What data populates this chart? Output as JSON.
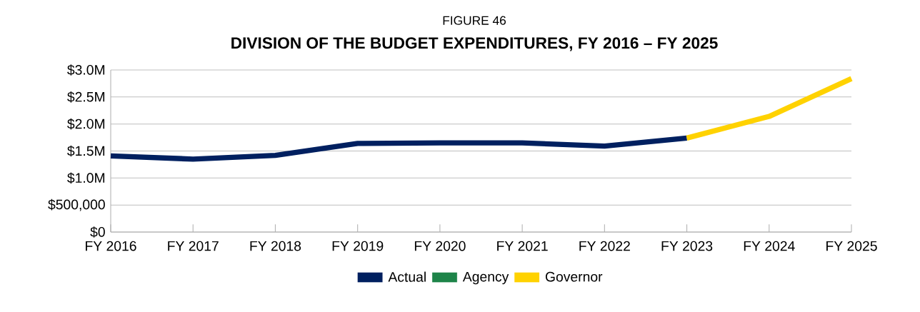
{
  "chart_data": {
    "type": "line",
    "title": "DIVISION OF THE BUDGET EXPENDITURES, FY 2016 – FY 2025",
    "subtitle": "FIGURE 46",
    "categories": [
      "FY 2016",
      "FY 2017",
      "FY 2018",
      "FY 2019",
      "FY 2020",
      "FY 2021",
      "FY 2022",
      "FY 2023",
      "FY 2024",
      "FY 2025"
    ],
    "series": [
      {
        "name": "Actual",
        "color": "#002060",
        "values": [
          1410000,
          1350000,
          1420000,
          1640000,
          1650000,
          1650000,
          1590000,
          1740000,
          null,
          null
        ]
      },
      {
        "name": "Agency",
        "color": "#1e8449",
        "values": [
          null,
          null,
          null,
          null,
          null,
          null,
          null,
          null,
          null,
          null
        ]
      },
      {
        "name": "Governor",
        "color": "#ffd200",
        "values": [
          null,
          null,
          null,
          null,
          null,
          null,
          null,
          1740000,
          2140000,
          2840000
        ]
      }
    ],
    "ylim": [
      0,
      3000000
    ],
    "yticks": [
      {
        "value": 0,
        "label": "$0"
      },
      {
        "value": 500000,
        "label": "$500,000"
      },
      {
        "value": 1000000,
        "label": "$1.0M"
      },
      {
        "value": 1500000,
        "label": "$1.5M"
      },
      {
        "value": 2000000,
        "label": "$2.0M"
      },
      {
        "value": 2500000,
        "label": "$2.5M"
      },
      {
        "value": 3000000,
        "label": "$3.0M"
      }
    ],
    "grid": "y",
    "legend": "bottom",
    "marker": "none",
    "line_style": "solid"
  }
}
